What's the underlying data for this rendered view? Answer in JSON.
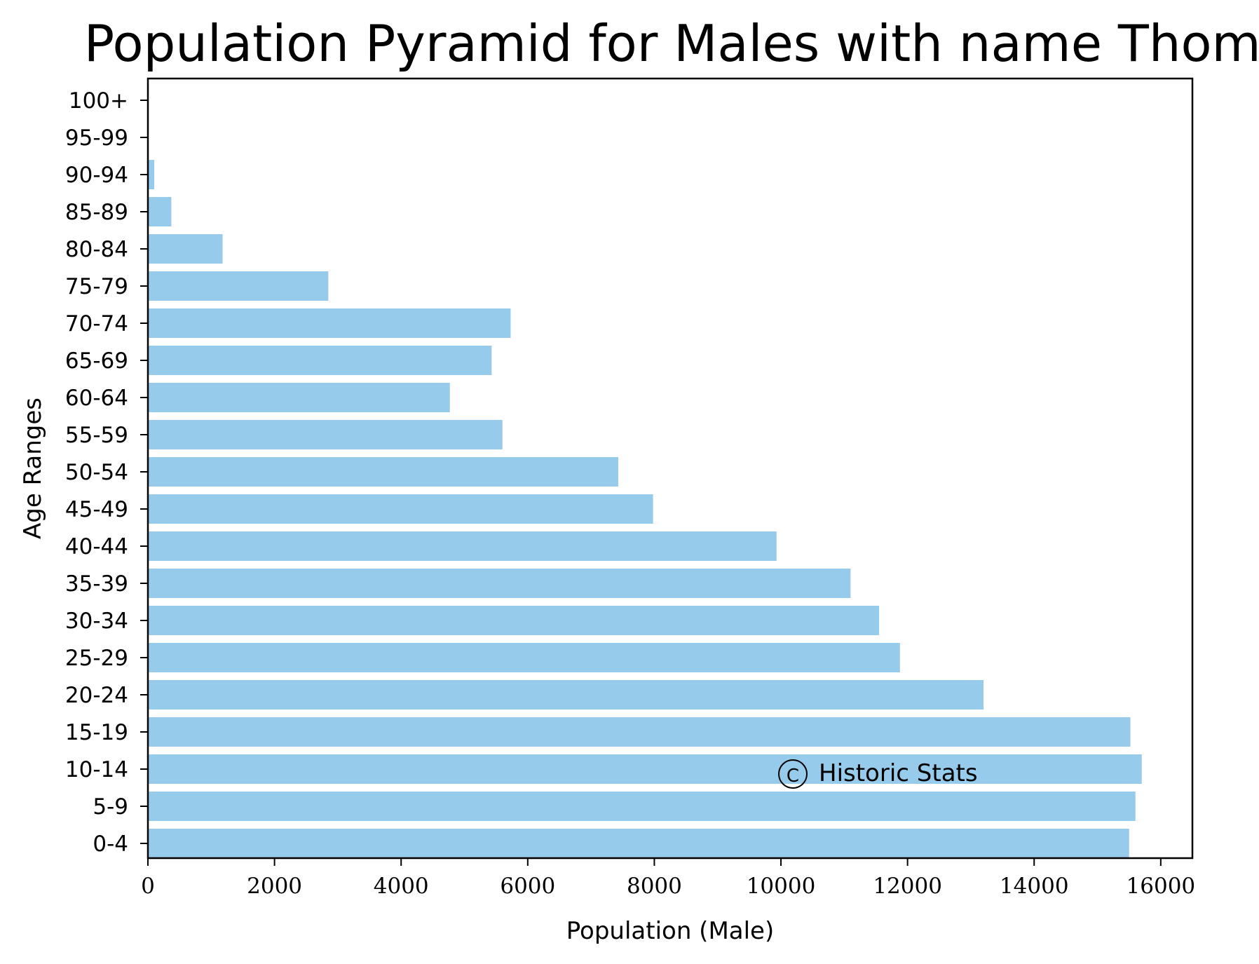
{
  "chart_data": {
    "type": "bar",
    "orientation": "horizontal",
    "title": "Population Pyramid for Males with name Thomas",
    "xlabel": "Population (Male)",
    "ylabel": "Age Ranges",
    "categories": [
      "0-4",
      "5-9",
      "10-14",
      "15-19",
      "20-24",
      "25-29",
      "30-34",
      "35-39",
      "40-44",
      "45-49",
      "50-54",
      "55-59",
      "60-64",
      "65-69",
      "70-74",
      "75-79",
      "80-84",
      "85-89",
      "90-94",
      "95-99",
      "100+"
    ],
    "values": [
      15500,
      15600,
      15700,
      15520,
      13200,
      11880,
      11550,
      11100,
      9930,
      7980,
      7430,
      5600,
      4770,
      5430,
      5730,
      2850,
      1180,
      370,
      100,
      0,
      0
    ],
    "xlim": [
      0,
      16500
    ],
    "xticks": [
      0,
      2000,
      4000,
      6000,
      8000,
      10000,
      12000,
      14000,
      16000
    ],
    "xtick_labels": [
      "0",
      "2000",
      "4000",
      "6000",
      "8000",
      "10000",
      "12000",
      "14000",
      "16000"
    ],
    "bar_color": "#97cbec",
    "grid": false,
    "watermark": "Historic Stats",
    "watermark_symbol": "C"
  }
}
